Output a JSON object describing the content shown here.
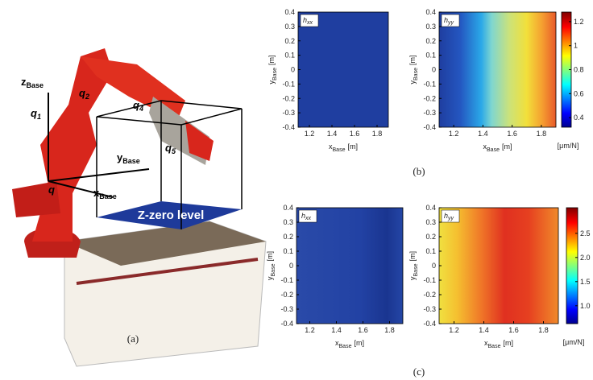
{
  "panel_a": {
    "caption": "(a)",
    "axes": [
      {
        "main": "z",
        "sub": "Base"
      },
      {
        "main": "y",
        "sub": "Base"
      },
      {
        "main": "x",
        "sub": "Base"
      }
    ],
    "joints": [
      {
        "main": "q",
        "sub": "1"
      },
      {
        "main": "q",
        "sub": "2"
      },
      {
        "main": "q",
        "sub": "4"
      },
      {
        "main": "q",
        "sub": "5"
      },
      {
        "main": "q"
      }
    ],
    "platform": "Z-zero  level"
  },
  "panel_b": {
    "caption": "(b)",
    "plots": [
      {
        "main": "h",
        "sub": "xx"
      },
      {
        "main": "h",
        "sub": "yy"
      }
    ],
    "xlabel": {
      "main": "x",
      "sub": "Base",
      "unit": "[m]"
    },
    "ylabel": {
      "main": "y",
      "sub": "Base",
      "unit": "[m]"
    },
    "xlim": [
      1.1,
      1.9
    ],
    "xticks": [
      1.2,
      1.4,
      1.6,
      1.8
    ],
    "ylim": [
      -0.4,
      0.4
    ],
    "yticks": [
      0.4,
      0.3,
      0.2,
      0.1,
      0,
      -0.1,
      -0.2,
      -0.3,
      -0.4
    ],
    "colorbar": {
      "lim": [
        0.32,
        1.28
      ],
      "ticks": [
        0.4,
        0.6,
        0.8,
        1,
        1.2
      ],
      "unit": "[μm/N]"
    }
  },
  "panel_c": {
    "caption": "(c)",
    "plots": [
      {
        "main": "h",
        "sub": "xx"
      },
      {
        "main": "h",
        "sub": "yy"
      }
    ],
    "xlabel": {
      "main": "x",
      "sub": "Base",
      "unit": "[m]"
    },
    "ylabel": {
      "main": "y",
      "sub": "Base",
      "unit": "[m]"
    },
    "xlim": [
      1.1,
      1.9
    ],
    "xticks": [
      1.2,
      1.4,
      1.6,
      1.8
    ],
    "ylim": [
      -0.4,
      0.4
    ],
    "yticks": [
      0.4,
      0.3,
      0.2,
      0.1,
      0,
      -0.1,
      -0.2,
      -0.3,
      -0.4
    ],
    "colorbar": {
      "lim": [
        0.63,
        3.03
      ],
      "ticks": [
        {
          "value": 1,
          "label": "1.0"
        },
        1.5,
        {
          "value": 2,
          "label": "2.0"
        },
        2.5
      ],
      "unit": "[μm/N]"
    }
  }
}
